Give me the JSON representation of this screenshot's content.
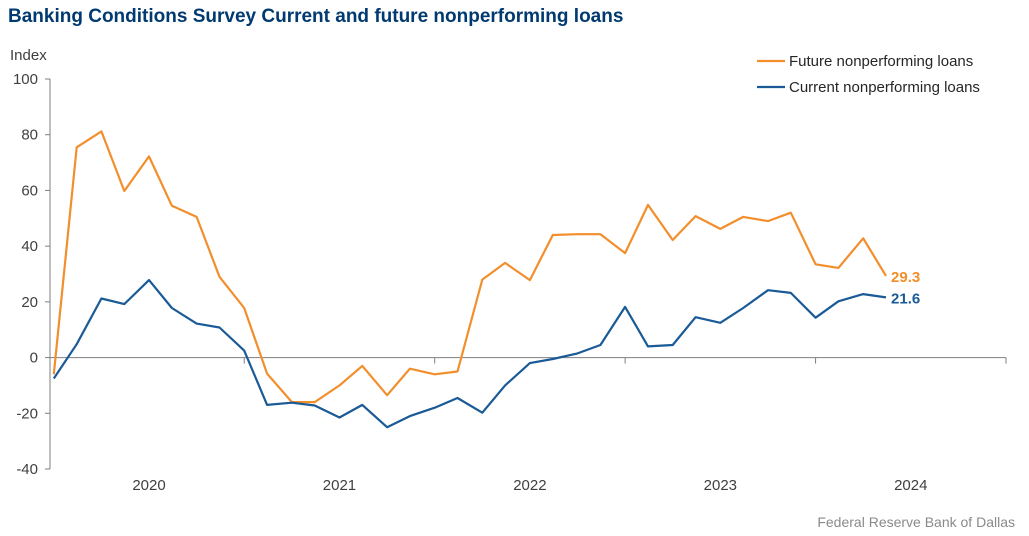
{
  "title": "Banking Conditions Survey Current and future nonperforming loans",
  "source": "Federal Reserve Bank of Dallas",
  "chart_data": {
    "type": "line",
    "ylabel": "Index",
    "ylim": [
      -40,
      100
    ],
    "yticks": [
      "100",
      "80",
      "60",
      "40",
      "20",
      "0",
      "-20",
      "-40"
    ],
    "ytick_values": [
      100,
      80,
      60,
      40,
      20,
      0,
      -20,
      -40
    ],
    "xticks": [
      {
        "label": "2020",
        "pos": 2019.9
      },
      {
        "label": "2021",
        "pos": 2020.9
      },
      {
        "label": "2022",
        "pos": 2021.9
      },
      {
        "label": "2023",
        "pos": 2022.9
      },
      {
        "label": "2024",
        "pos": 2023.9
      }
    ],
    "year_boundaries": [
      2020.4,
      2021.4,
      2022.4,
      2023.4,
      2024.4
    ],
    "xlim": [
      2019.38,
      2024.4
    ],
    "grid": false,
    "legend": "top-right",
    "x": [
      2019.4,
      2019.52,
      2019.65,
      2019.77,
      2019.9,
      2020.02,
      2020.15,
      2020.27,
      2020.4,
      2020.52,
      2020.65,
      2020.77,
      2020.9,
      2021.02,
      2021.15,
      2021.27,
      2021.4,
      2021.52,
      2021.65,
      2021.77,
      2021.9,
      2022.02,
      2022.15,
      2022.27,
      2022.4,
      2022.52,
      2022.65,
      2022.77,
      2022.9,
      2023.02,
      2023.15,
      2023.27,
      2023.4,
      2023.52,
      2023.65,
      2023.77
    ],
    "series": [
      {
        "name": "Future nonperforming loans",
        "color": "#f28e2b",
        "end_label": "29.3",
        "values": [
          -6,
          75.5,
          81.2,
          59.8,
          72.2,
          54.5,
          50.5,
          29,
          17.8,
          -5.8,
          -16,
          -16,
          -10,
          -3,
          -13.5,
          -4,
          -6,
          -5,
          28,
          34,
          27.8,
          44,
          44.3,
          44.3,
          37.5,
          54.8,
          42.2,
          50.8,
          46.2,
          50.5,
          49,
          52,
          33.5,
          32.2,
          42.8,
          29.3
        ]
      },
      {
        "name": "Current nonperforming loans",
        "color": "#1a5a96",
        "end_label": "21.6",
        "values": [
          -7.5,
          4.8,
          21.2,
          19.2,
          27.8,
          17.8,
          12.2,
          10.8,
          2.5,
          -17,
          -16.2,
          -17.2,
          -21.5,
          -17,
          -25,
          -21,
          -18,
          -14.5,
          -19.8,
          -10,
          -2,
          -0.5,
          1.5,
          4.5,
          18.2,
          4,
          4.5,
          14.5,
          12.5,
          17.8,
          24.2,
          23.2,
          14.3,
          20.2,
          22.8,
          21.6
        ]
      }
    ]
  }
}
